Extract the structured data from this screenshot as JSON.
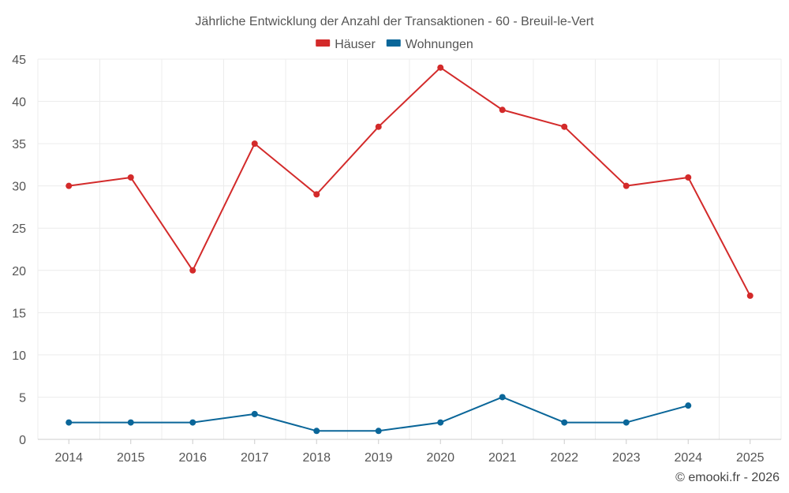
{
  "chart_data": {
    "type": "line",
    "title": "Jährliche Entwicklung der Anzahl der Transaktionen - 60 - Breuil-le-Vert",
    "xlabel": "",
    "ylabel": "",
    "categories": [
      "2014",
      "2015",
      "2016",
      "2017",
      "2018",
      "2019",
      "2020",
      "2021",
      "2022",
      "2023",
      "2024",
      "2025"
    ],
    "ylim": [
      0,
      45
    ],
    "yticks": [
      0,
      5,
      10,
      15,
      20,
      25,
      30,
      35,
      40,
      45
    ],
    "grid": true,
    "legend_position": "top-center",
    "series": [
      {
        "name": "Häuser",
        "color": "#d32a2a",
        "values": [
          30,
          31,
          20,
          35,
          29,
          37,
          44,
          39,
          37,
          30,
          31,
          17
        ]
      },
      {
        "name": "Wohnungen",
        "color": "#0a6699",
        "values": [
          2,
          2,
          2,
          3,
          1,
          1,
          2,
          5,
          2,
          2,
          4,
          null
        ]
      }
    ]
  },
  "credit": "© emooki.fr - 2026"
}
